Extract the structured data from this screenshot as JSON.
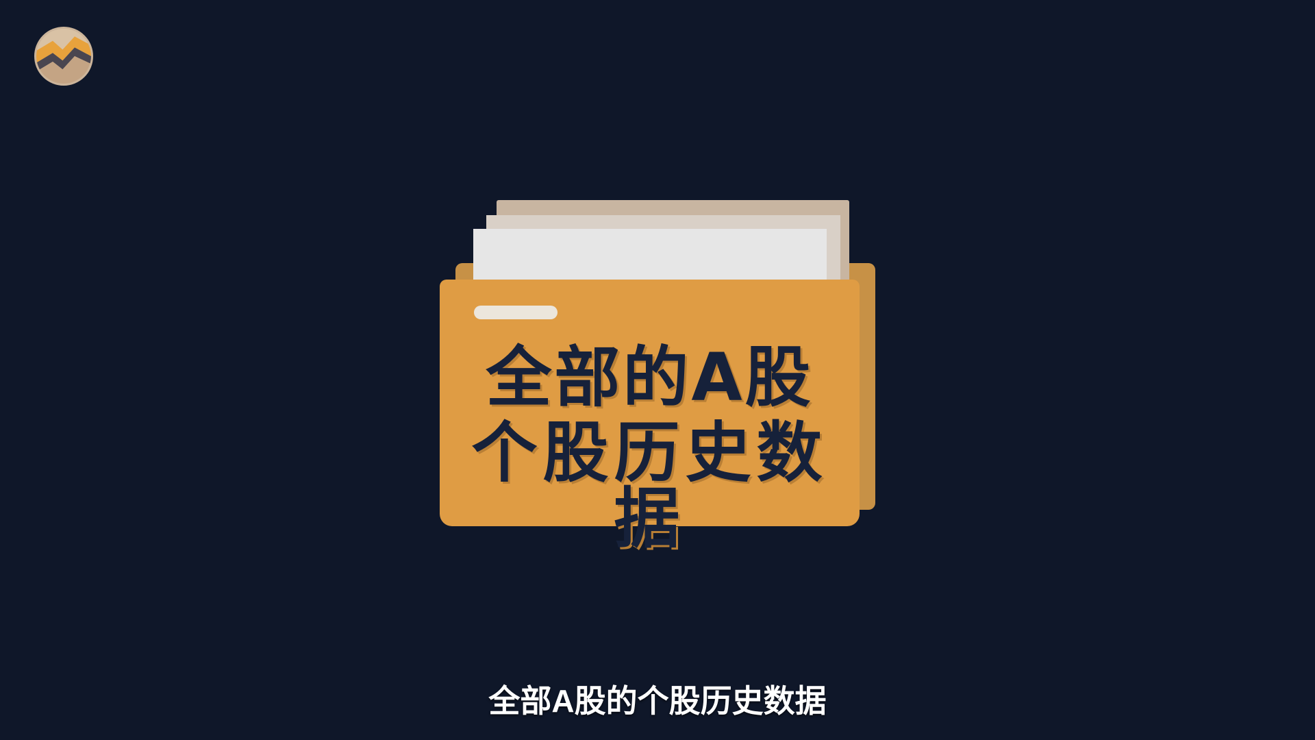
{
  "brand": {
    "logo_icon": "mountain-chart-icon"
  },
  "folder": {
    "icon": "folder-icon",
    "title_line_1": "全部的A股",
    "title_line_2": "个股历史数据"
  },
  "subtitle": {
    "text": "全部A股的个股历史数据"
  },
  "colors": {
    "background": "#0f1729",
    "folder_front": "#df9c44",
    "folder_back": "#c79146",
    "title_text": "#16213a",
    "caption_text": "#ffffff"
  }
}
